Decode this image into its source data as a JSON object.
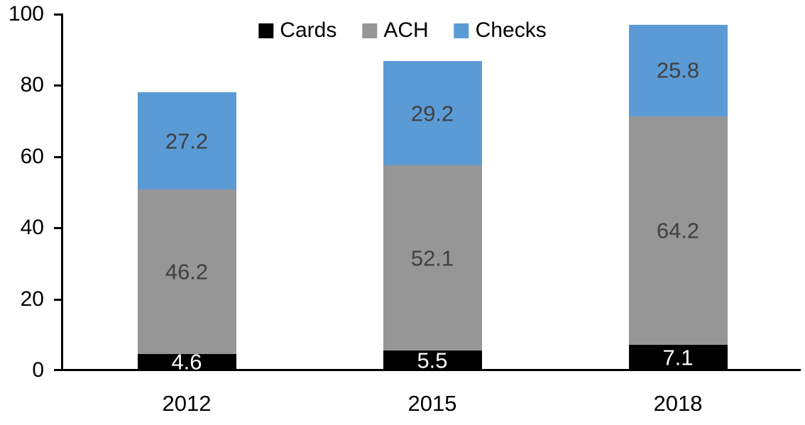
{
  "chart_data": {
    "type": "bar",
    "stacked": true,
    "title": "",
    "xlabel": "",
    "ylabel": "",
    "categories": [
      "2012",
      "2015",
      "2018"
    ],
    "series": [
      {
        "name": "Cards",
        "color": "#000000",
        "label_color": "#ffffff",
        "values": [
          4.6,
          5.5,
          7.1
        ]
      },
      {
        "name": "ACH",
        "color": "#969696",
        "label_color": "#404040",
        "values": [
          46.2,
          52.1,
          64.2
        ]
      },
      {
        "name": "Checks",
        "color": "#5b9bd5",
        "label_color": "#404040",
        "values": [
          27.2,
          29.2,
          25.8
        ]
      }
    ],
    "totals": [
      78.0,
      86.8,
      97.1
    ],
    "ylim": [
      0,
      100
    ],
    "yticks": [
      0,
      20,
      40,
      60,
      80,
      100
    ],
    "grid": false,
    "legend_position": "top-center",
    "axis_color": "#000000",
    "background_color": "#ffffff"
  }
}
